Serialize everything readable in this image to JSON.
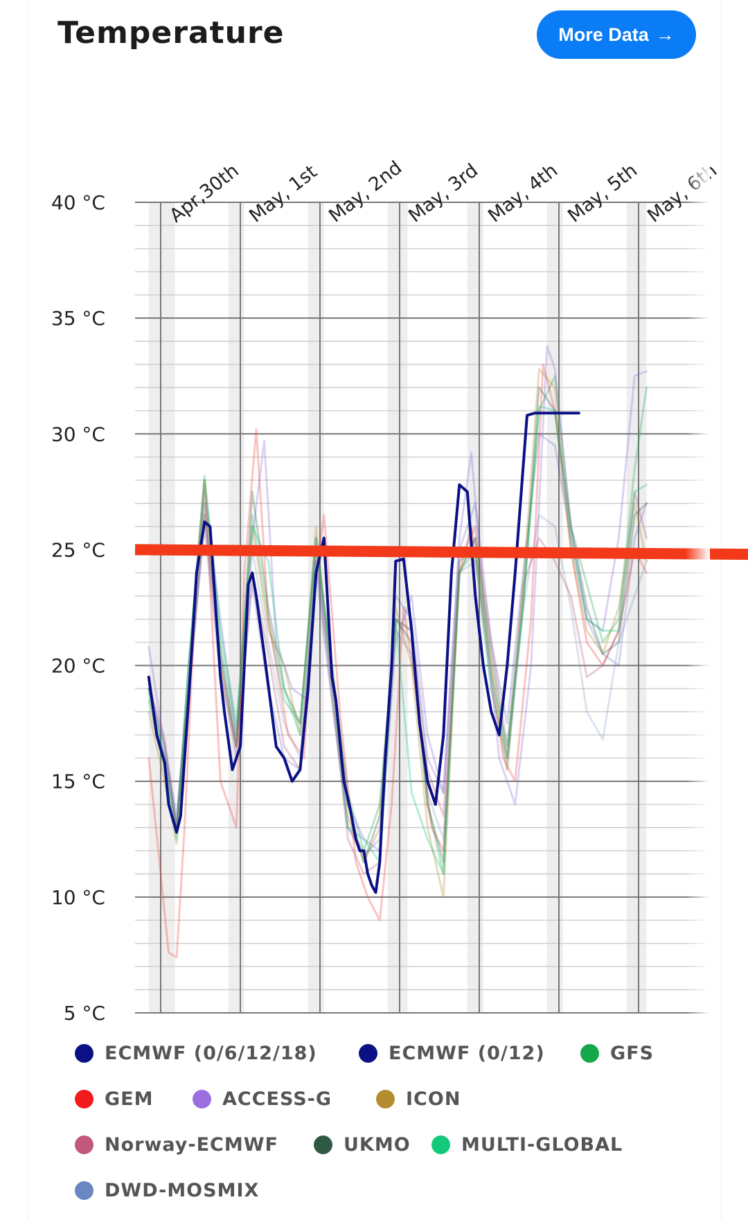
{
  "header": {
    "title": "Temperature",
    "button_label": "More Data",
    "button_icon": "arrow-right-icon"
  },
  "chart_data": {
    "type": "line",
    "title": "Temperature",
    "ylim": [
      5,
      40
    ],
    "yticks": [
      {
        "value": 40,
        "label": "40 °C"
      },
      {
        "value": 35,
        "label": "35 °C"
      },
      {
        "value": 30,
        "label": "30 °C"
      },
      {
        "value": 25,
        "label": "25 °C"
      },
      {
        "value": 20,
        "label": "20 °C"
      },
      {
        "value": 15,
        "label": "15 °C"
      },
      {
        "value": 10,
        "label": "10 °C"
      },
      {
        "value": 5,
        "label": "5 °C"
      }
    ],
    "xlim": [
      -0.18,
      7.0
    ],
    "day_ticks": [
      {
        "x": 0,
        "label": "Apr,30th"
      },
      {
        "x": 1,
        "label": "May, 1st"
      },
      {
        "x": 2,
        "label": "May, 2nd"
      },
      {
        "x": 3,
        "label": "May, 3rd"
      },
      {
        "x": 4,
        "label": "May, 4th"
      },
      {
        "x": 5,
        "label": "May, 5th"
      },
      {
        "x": 6,
        "label": "May, 6th"
      }
    ],
    "grid": true,
    "reference_line": {
      "color": "#f23a1b",
      "y_start": 25.0,
      "y_end": 24.8
    },
    "series": [
      {
        "name": "ECMWF (0/6/12/18)",
        "color": "#0b1185",
        "legend_color": "#0b1185",
        "opacity": 1.0,
        "width": 4,
        "x": [
          -0.15,
          -0.05,
          0.05,
          0.1,
          0.2,
          0.25,
          0.35,
          0.45,
          0.55,
          0.62,
          0.65,
          0.7,
          0.75,
          0.8,
          0.9,
          1.0,
          1.05,
          1.1,
          1.15,
          1.2,
          1.3,
          1.45,
          1.55,
          1.65,
          1.75,
          1.85,
          1.95,
          2.05,
          2.15,
          2.2,
          2.3,
          2.38,
          2.45,
          2.5,
          2.55,
          2.6,
          2.65,
          2.7,
          2.75,
          2.78,
          2.82,
          2.9,
          2.95,
          3.05,
          3.15,
          3.25,
          3.35,
          3.45,
          3.55,
          3.65,
          3.75,
          3.85,
          3.95,
          4.05,
          4.15,
          4.25,
          4.35,
          4.45,
          4.6,
          4.7,
          4.85,
          5.0,
          5.1,
          5.25
        ],
        "y": [
          19.5,
          17.0,
          15.8,
          14.0,
          12.8,
          13.5,
          18.5,
          24.0,
          26.2,
          26.0,
          24.5,
          22.0,
          19.5,
          18.0,
          15.5,
          16.5,
          20.0,
          23.5,
          24.0,
          23.0,
          20.5,
          16.5,
          16.0,
          15.0,
          15.5,
          19.0,
          24.0,
          25.5,
          19.5,
          18.5,
          15.0,
          13.8,
          12.5,
          12.0,
          12.0,
          11.0,
          10.5,
          10.2,
          11.5,
          13.5,
          16.0,
          20.0,
          24.5,
          24.6,
          21.5,
          17.5,
          15.0,
          14.0,
          17.0,
          24.0,
          27.8,
          27.5,
          23.0,
          20.0,
          18.0,
          17.0,
          20.0,
          24.0,
          30.8,
          30.9,
          30.9,
          30.9,
          30.9,
          30.9
        ]
      },
      {
        "name": "ECMWF (0/12)",
        "color": "#1a1aa0",
        "legend_color": "#0b1185",
        "opacity": 0.18,
        "width": 3,
        "x": [
          -0.15,
          0.05,
          0.2,
          0.35,
          0.55,
          0.75,
          0.95,
          1.15,
          1.35,
          1.55,
          1.75,
          1.95,
          2.15,
          2.35,
          2.55,
          2.75,
          2.95,
          3.15,
          3.35,
          3.55,
          3.75,
          3.95,
          4.15,
          4.35,
          4.55,
          4.75,
          4.95,
          5.15,
          5.35,
          5.55,
          5.75,
          5.95,
          6.1
        ],
        "y": [
          19.0,
          16.5,
          13.5,
          19.0,
          26.0,
          19.5,
          16.5,
          23.5,
          19.0,
          16.0,
          15.5,
          24.5,
          18.5,
          13.0,
          11.8,
          12.5,
          23.0,
          22.0,
          16.0,
          14.5,
          25.0,
          27.0,
          21.0,
          17.5,
          24.0,
          30.0,
          29.5,
          25.5,
          22.0,
          20.5,
          20.0,
          25.5,
          27.0
        ]
      },
      {
        "name": "GFS",
        "color": "#1aa84b",
        "legend_color": "#14a84a",
        "opacity": 0.3,
        "width": 3,
        "x": [
          -0.15,
          0.05,
          0.2,
          0.35,
          0.55,
          0.75,
          0.95,
          1.15,
          1.35,
          1.55,
          1.75,
          1.95,
          2.15,
          2.35,
          2.55,
          2.75,
          2.95,
          3.15,
          3.35,
          3.55,
          3.75,
          3.95,
          4.15,
          4.35,
          4.55,
          4.75,
          4.95,
          5.15,
          5.35,
          5.55,
          5.75,
          5.95,
          6.1
        ],
        "y": [
          18.5,
          15.5,
          12.8,
          20.0,
          28.0,
          21.0,
          17.0,
          26.5,
          22.0,
          18.5,
          17.5,
          25.0,
          20.0,
          14.5,
          12.0,
          14.0,
          22.0,
          21.5,
          14.0,
          11.0,
          24.5,
          25.0,
          19.0,
          16.0,
          23.0,
          31.0,
          32.5,
          26.0,
          23.5,
          21.0,
          22.0,
          28.5,
          32.0
        ]
      },
      {
        "name": "GEM",
        "color": "#ee3b3b",
        "legend_color": "#f21b1b",
        "opacity": 0.3,
        "width": 3,
        "x": [
          -0.15,
          0.0,
          0.1,
          0.2,
          0.3,
          0.45,
          0.55,
          0.75,
          0.95,
          1.05,
          1.2,
          1.35,
          1.5,
          1.6,
          1.8,
          1.95,
          2.05,
          2.25,
          2.45,
          2.6,
          2.75,
          2.9,
          3.05,
          3.2,
          3.4,
          3.55,
          3.75,
          3.9,
          4.1,
          4.3,
          4.45,
          4.65,
          4.8,
          4.95,
          5.15,
          5.35,
          5.55,
          5.75,
          5.95,
          6.1
        ],
        "y": [
          16.0,
          11.0,
          7.6,
          7.4,
          13.0,
          24.0,
          28.0,
          15.0,
          13.0,
          24.0,
          30.2,
          22.0,
          19.0,
          17.0,
          16.0,
          24.0,
          26.5,
          18.0,
          11.5,
          10.0,
          9.0,
          14.0,
          22.5,
          19.0,
          13.0,
          12.0,
          24.0,
          26.0,
          21.0,
          16.0,
          15.0,
          22.0,
          33.0,
          31.0,
          25.0,
          21.0,
          20.0,
          21.5,
          25.0,
          24.0
        ]
      },
      {
        "name": "ACCESS-G",
        "color": "#8a6ad8",
        "legend_color": "#9b6fe0",
        "opacity": 0.3,
        "width": 3,
        "x": [
          -0.15,
          0.05,
          0.2,
          0.35,
          0.55,
          0.75,
          0.95,
          1.15,
          1.3,
          1.45,
          1.65,
          1.85,
          1.95,
          2.15,
          2.35,
          2.55,
          2.75,
          2.95,
          3.15,
          3.35,
          3.55,
          3.75,
          3.9,
          4.05,
          4.25,
          4.45,
          4.65,
          4.85,
          4.95,
          5.15,
          5.35,
          5.55,
          5.75,
          5.95,
          6.1
        ],
        "y": [
          20.8,
          16.5,
          13.0,
          20.0,
          27.5,
          22.0,
          17.0,
          25.5,
          29.7,
          21.0,
          19.0,
          18.5,
          24.5,
          19.5,
          14.0,
          12.5,
          12.0,
          21.0,
          23.0,
          17.0,
          14.5,
          25.5,
          29.2,
          23.0,
          16.0,
          14.0,
          20.0,
          33.8,
          32.8,
          26.0,
          22.0,
          21.5,
          25.5,
          32.5,
          32.7
        ]
      },
      {
        "name": "ICON",
        "color": "#b08a2a",
        "legend_color": "#b38d2e",
        "opacity": 0.3,
        "width": 3,
        "x": [
          -0.15,
          0.05,
          0.2,
          0.35,
          0.55,
          0.75,
          0.95,
          1.15,
          1.35,
          1.55,
          1.75,
          1.95,
          2.15,
          2.35,
          2.55,
          2.75,
          2.95,
          3.15,
          3.35,
          3.55,
          3.75,
          3.95,
          4.15,
          4.35,
          4.55,
          4.75,
          4.95,
          5.15,
          5.35,
          5.55,
          5.75,
          5.95,
          6.1
        ],
        "y": [
          18.0,
          15.0,
          12.3,
          19.5,
          28.0,
          20.0,
          16.5,
          26.0,
          21.5,
          20.0,
          17.0,
          26.0,
          19.0,
          13.5,
          11.5,
          13.0,
          22.5,
          20.0,
          13.0,
          10.0,
          24.0,
          25.5,
          20.0,
          15.5,
          23.5,
          32.8,
          32.0,
          25.0,
          21.5,
          20.5,
          22.5,
          27.0,
          24.5
        ]
      },
      {
        "name": "Norway-ECMWF",
        "color": "#b05a78",
        "legend_color": "#c2587a",
        "opacity": 0.3,
        "width": 3,
        "x": [
          -0.15,
          0.05,
          0.2,
          0.35,
          0.55,
          0.75,
          0.95,
          1.15,
          1.35,
          1.55,
          1.75,
          1.95,
          2.15,
          2.35,
          2.55,
          2.75,
          2.95,
          3.15,
          3.35,
          3.55,
          3.75,
          3.95,
          4.15,
          4.35,
          4.55,
          4.75,
          4.95,
          5.15,
          5.35,
          5.55,
          5.75,
          5.95,
          6.1
        ],
        "y": [
          19.2,
          16.8,
          13.0,
          18.5,
          26.5,
          20.0,
          16.0,
          24.0,
          20.5,
          16.5,
          15.5,
          25.0,
          19.0,
          12.5,
          11.0,
          11.5,
          22.0,
          21.5,
          15.5,
          13.5,
          24.5,
          26.0,
          21.0,
          16.5,
          23.5,
          25.5,
          24.5,
          23.0,
          19.5,
          20.0,
          21.5,
          27.5,
          25.5
        ]
      },
      {
        "name": "UKMO",
        "color": "#2f5e45",
        "legend_color": "#2e5a44",
        "opacity": 0.3,
        "width": 3,
        "x": [
          -0.15,
          0.05,
          0.2,
          0.35,
          0.55,
          0.75,
          0.95,
          1.15,
          1.35,
          1.55,
          1.75,
          1.95,
          2.15,
          2.35,
          2.55,
          2.75,
          2.95,
          3.15,
          3.35,
          3.55,
          3.75,
          3.95,
          4.15,
          4.35,
          4.55,
          4.75,
          4.95,
          5.15,
          5.35,
          5.55,
          5.75,
          5.95,
          6.1
        ],
        "y": [
          19.0,
          16.0,
          13.0,
          19.0,
          27.0,
          20.5,
          16.5,
          27.5,
          22.5,
          19.0,
          17.5,
          25.5,
          20.0,
          14.0,
          11.5,
          13.5,
          22.0,
          21.0,
          14.0,
          11.5,
          24.0,
          25.5,
          20.5,
          16.0,
          22.5,
          32.0,
          31.0,
          26.0,
          22.5,
          20.5,
          21.0,
          26.5,
          27.0
        ]
      },
      {
        "name": "MULTI-GLOBAL",
        "color": "#14c47a",
        "legend_color": "#14c979",
        "opacity": 0.3,
        "width": 3,
        "x": [
          -0.15,
          0.05,
          0.2,
          0.35,
          0.55,
          0.75,
          0.95,
          1.15,
          1.35,
          1.55,
          1.75,
          1.95,
          2.15,
          2.35,
          2.55,
          2.75,
          2.95,
          3.15,
          3.35,
          3.55,
          3.75,
          3.95,
          4.15,
          4.35,
          4.55,
          4.75,
          4.95,
          5.15,
          5.35,
          5.55,
          5.75,
          5.95,
          6.1
        ],
        "y": [
          18.8,
          16.0,
          12.5,
          20.0,
          28.2,
          21.5,
          17.5,
          26.0,
          24.5,
          19.0,
          17.0,
          25.5,
          19.5,
          13.0,
          12.5,
          11.5,
          22.0,
          14.5,
          12.5,
          11.0,
          24.0,
          25.0,
          19.5,
          16.5,
          22.5,
          31.2,
          31.0,
          25.5,
          22.0,
          21.5,
          21.5,
          27.5,
          27.8
        ]
      },
      {
        "name": "DWD-MOSMIX",
        "color": "#5f7fb8",
        "legend_color": "#6a87c2",
        "opacity": 0.22,
        "width": 3,
        "x": [
          -0.15,
          0.05,
          0.2,
          0.35,
          0.55,
          0.75,
          0.95,
          1.15,
          1.35,
          1.55,
          1.75,
          1.95,
          2.15,
          2.35,
          2.55,
          2.75,
          2.95,
          3.15,
          3.35,
          3.55,
          3.75,
          3.95,
          4.15,
          4.35,
          4.55,
          4.75,
          4.95,
          5.15,
          5.35,
          5.55,
          5.75,
          5.95,
          6.1
        ],
        "y": [
          19.0,
          16.5,
          13.0,
          19.0,
          26.5,
          20.5,
          16.5,
          25.0,
          21.0,
          17.5,
          16.0,
          24.0,
          18.5,
          13.0,
          12.0,
          12.0,
          21.5,
          20.5,
          14.5,
          12.5,
          24.0,
          24.5,
          19.0,
          15.5,
          22.5,
          26.5,
          26.0,
          22.5,
          18.0,
          16.8,
          21.0,
          23.0,
          24.5
        ]
      }
    ]
  }
}
